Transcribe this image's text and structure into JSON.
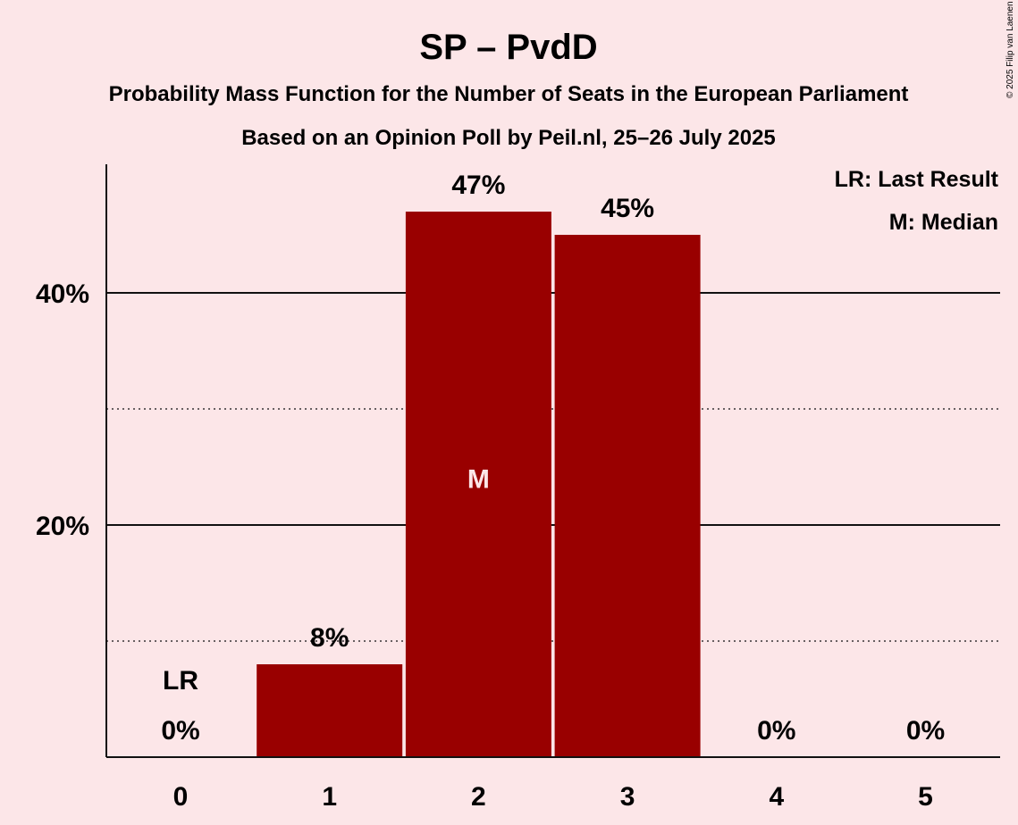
{
  "chart_data": {
    "type": "bar",
    "title": "SP – PvdD",
    "subtitle": "Probability Mass Function for the Number of Seats in the European Parliament",
    "subtitle2": "Based on an Opinion Poll by Peil.nl, 25–26 July 2025",
    "copyright": "© 2025 Filip van Laenen",
    "categories": [
      "0",
      "1",
      "2",
      "3",
      "4",
      "5"
    ],
    "values": [
      0,
      8,
      47,
      45,
      0,
      0
    ],
    "value_labels": [
      "0%",
      "8%",
      "47%",
      "45%",
      "0%",
      "0%"
    ],
    "ylim": [
      0,
      50
    ],
    "yticks": [
      {
        "value": 20,
        "label": "20%"
      },
      {
        "value": 40,
        "label": "40%"
      }
    ],
    "minor_gridlines": [
      10,
      30
    ],
    "last_result": {
      "category": "0",
      "label": "LR"
    },
    "median": {
      "category": "2",
      "label": "M"
    },
    "legend": [
      "LR: Last Result",
      "M: Median"
    ],
    "legend_position": "top-right",
    "bar_color": "#990000",
    "background_color": "#fce6e8"
  }
}
